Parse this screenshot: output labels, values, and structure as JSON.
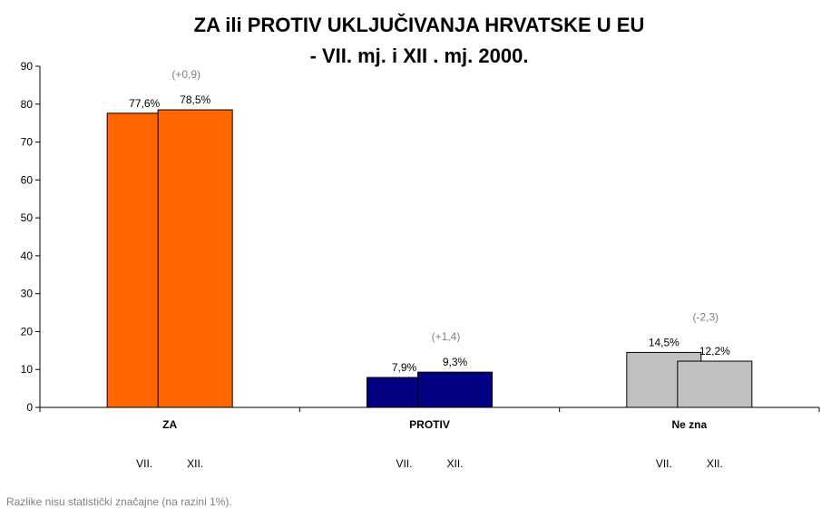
{
  "chart_data": {
    "type": "bar",
    "title_line1": "ZA ili PROTIV UKLJUČIVANJA HRVATSKE U EU",
    "title_line2": "- VII. mj. i XII . mj. 2000.",
    "xlabel": "",
    "ylabel": "",
    "ylim": [
      0,
      90
    ],
    "yticks": [
      0,
      10,
      20,
      30,
      40,
      50,
      60,
      70,
      80,
      90
    ],
    "grid": false,
    "legend": "none",
    "categories": [
      "ZA",
      "PROTIV",
      "Ne zna"
    ],
    "sub_labels": [
      "VII.",
      "XII."
    ],
    "series": [
      {
        "name": "VII.",
        "values": [
          77.6,
          7.9,
          14.5
        ],
        "labels": [
          "77,6%",
          "7,9%",
          "14,5%"
        ]
      },
      {
        "name": "XII.",
        "values": [
          78.5,
          9.3,
          12.2
        ],
        "labels": [
          "78,5%",
          "9,3%",
          "12,2%"
        ]
      }
    ],
    "bar_colors": [
      [
        "#ff6600",
        "#ff6600"
      ],
      [
        "#000080",
        "#000080"
      ],
      [
        "#c0c0c0",
        "#c0c0c0"
      ]
    ],
    "differences": [
      "(+0,9)",
      "(+1,4)",
      "(-2,3)"
    ]
  },
  "footnote": "Razlike nisu statistički značajne (na razini 1%)."
}
